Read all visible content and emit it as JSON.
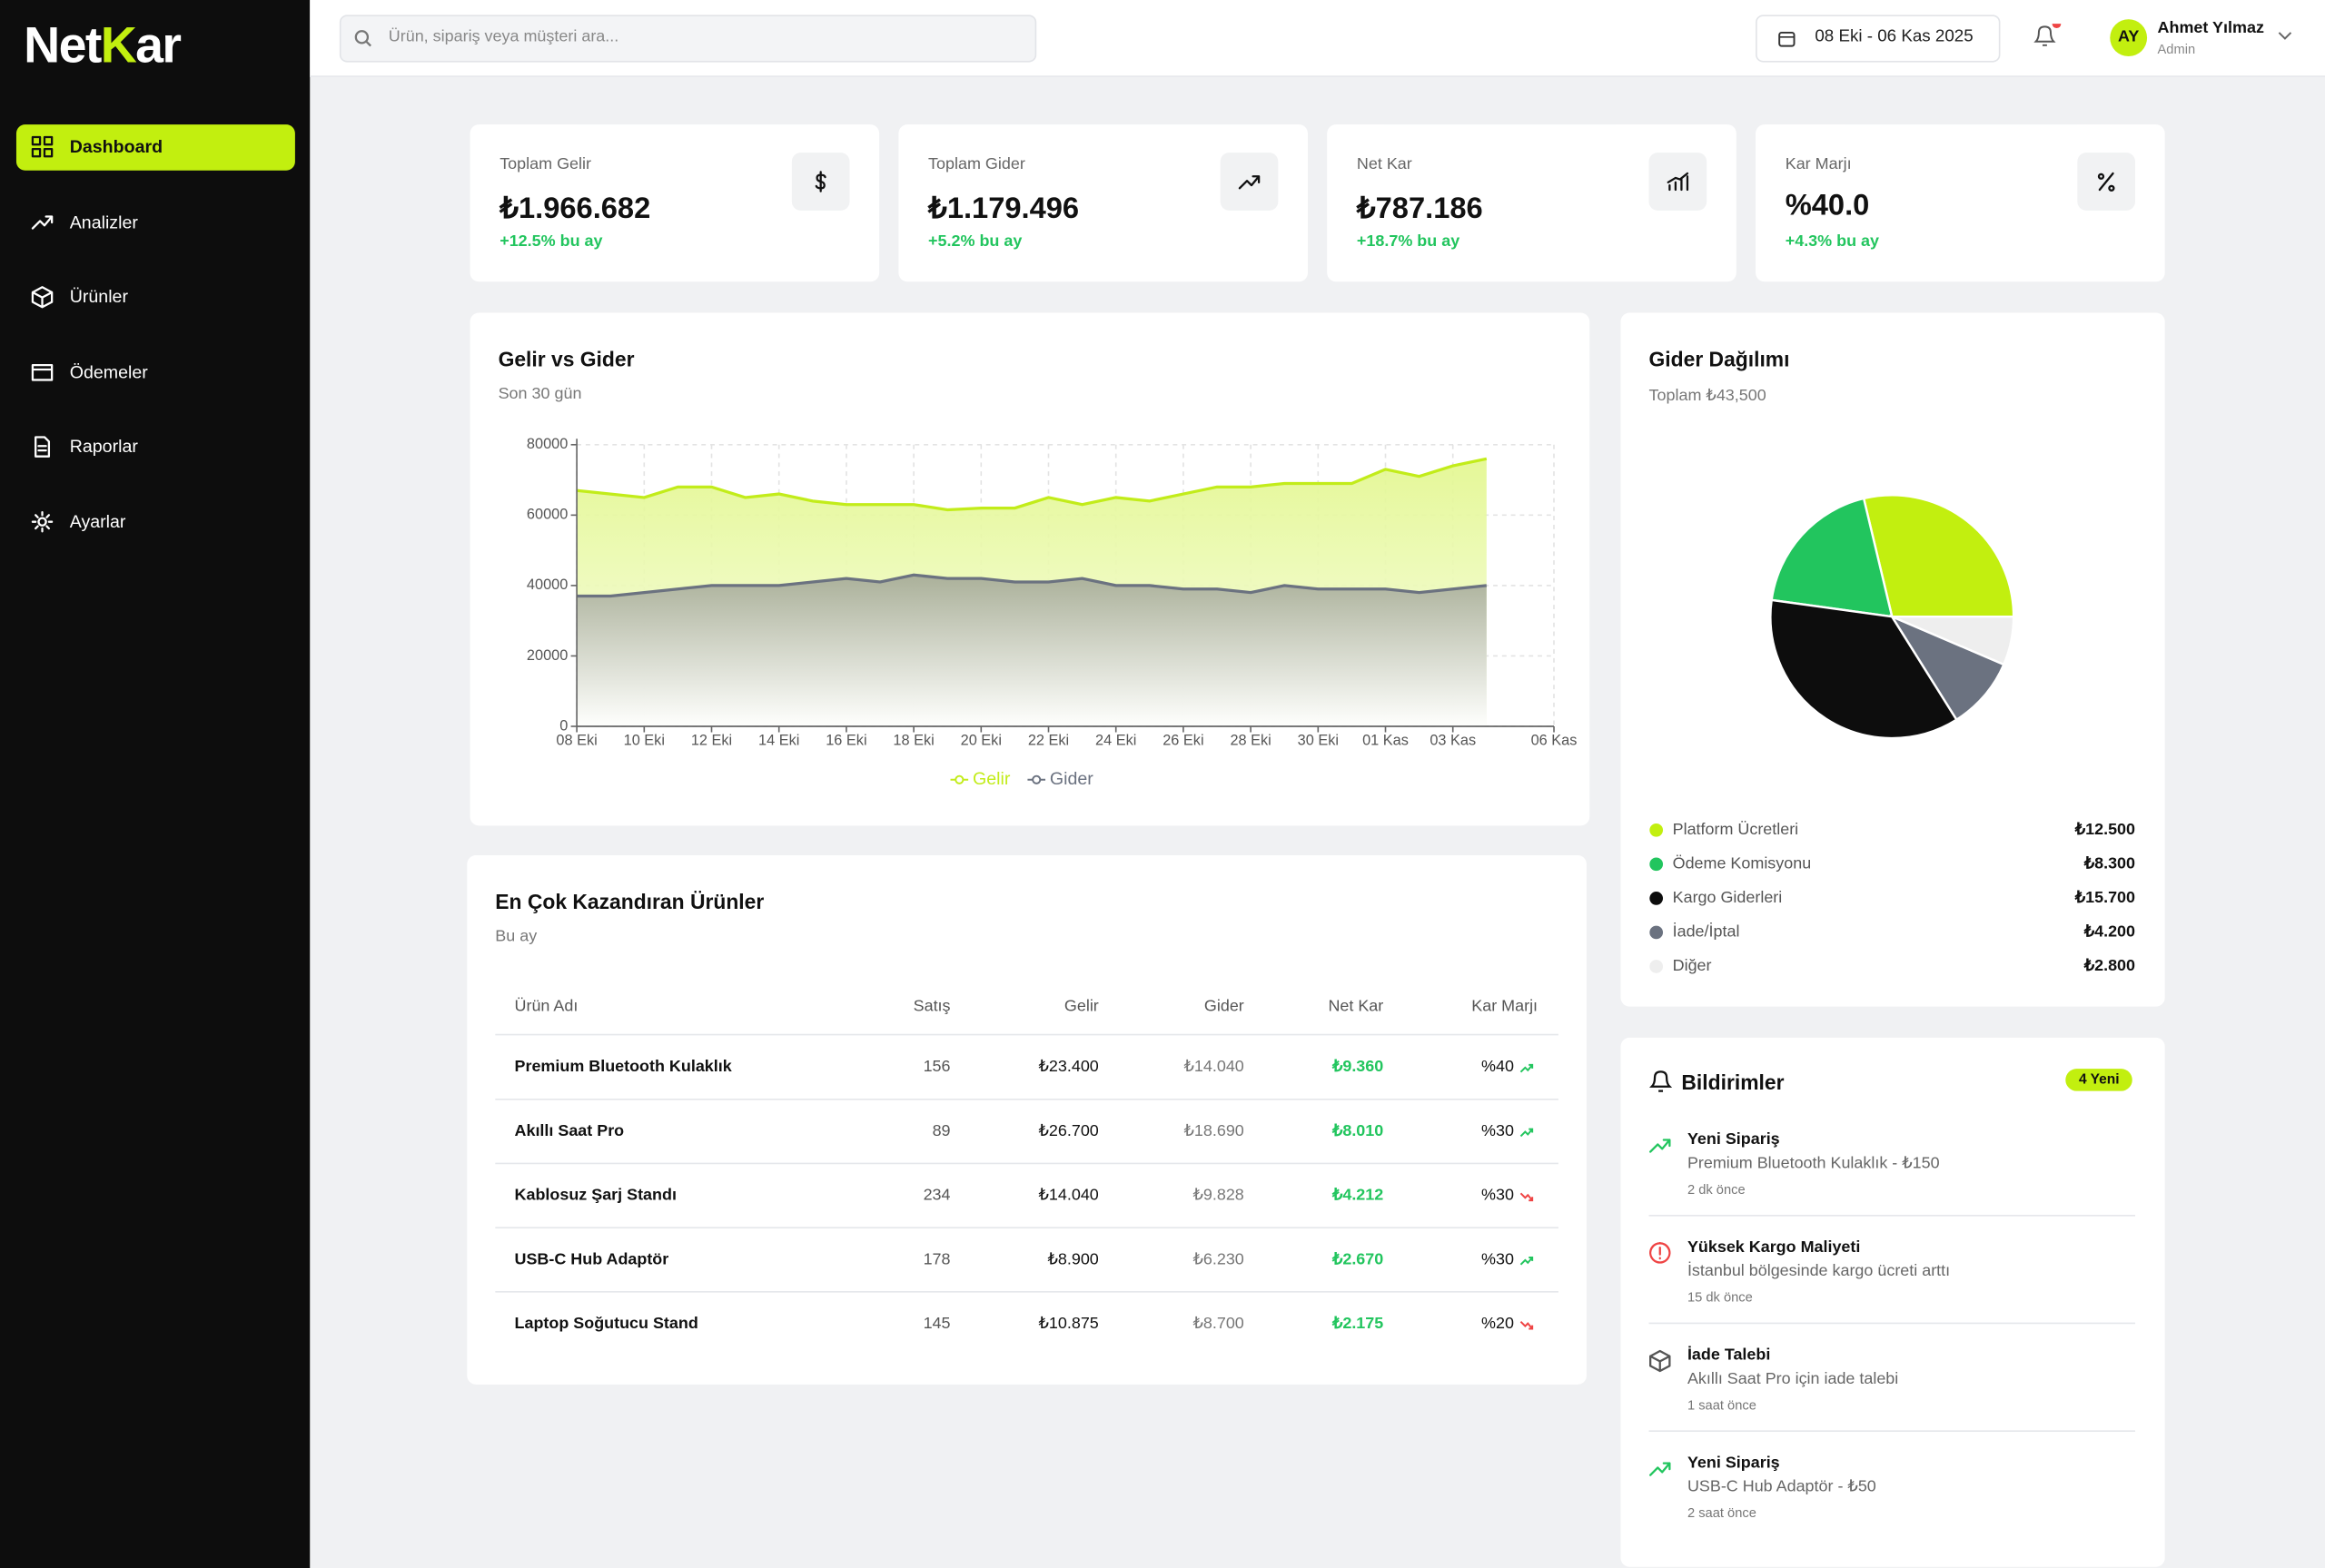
{
  "brand": [
    "Net",
    "K",
    "ar"
  ],
  "nav": {
    "active": 0,
    "items": [
      "Dashboard",
      "Analizler",
      "Ürünler",
      "Ödemeler",
      "Raporlar",
      "Ayarlar"
    ]
  },
  "header": {
    "search_placeholder": "Ürün, sipariş veya müşteri ara...",
    "date_range": "08 Eki - 06 Kas 2025",
    "notification_dot": true,
    "user": {
      "initials": "AY",
      "name": "Ahmet Yılmaz",
      "role": "Admin"
    }
  },
  "kpis": [
    {
      "label": "Toplam Gelir",
      "value": "₺1.966.682",
      "change": "+12.5% bu ay",
      "icon": "dollar"
    },
    {
      "label": "Toplam Gider",
      "value": "₺1.179.496",
      "change": "+5.2% bu ay",
      "icon": "trend"
    },
    {
      "label": "Net Kar",
      "value": "₺787.186",
      "change": "+18.7% bu ay",
      "icon": "bars"
    },
    {
      "label": "Kar Marjı",
      "value": "%40.0",
      "change": "+4.3% bu ay",
      "icon": "percent"
    }
  ],
  "chart_data": [
    {
      "type": "line",
      "title": "Gelir vs Gider",
      "subtitle": "Son 30 gün",
      "categories": [
        "08 Eki",
        null,
        "10 Eki",
        null,
        "12 Eki",
        null,
        "14 Eki",
        null,
        "16 Eki",
        null,
        "18 Eki",
        null,
        "20 Eki",
        null,
        "22 Eki",
        null,
        "24 Eki",
        null,
        "26 Eki",
        null,
        "28 Eki",
        null,
        "30 Eki",
        null,
        "01 Kas",
        null,
        "03 Kas",
        null,
        null,
        "06 Kas"
      ],
      "series": [
        {
          "name": "Gelir",
          "color": "#c2ec1a",
          "values": [
            67000,
            66000,
            65000,
            68000,
            68000,
            65000,
            66000,
            64000,
            63000,
            63000,
            63000,
            61500,
            62000,
            62000,
            65000,
            63000,
            65000,
            64000,
            66000,
            68000,
            68000,
            69000,
            69000,
            69000,
            73000,
            71000,
            74000,
            76000,
            null,
            null
          ]
        },
        {
          "name": "Gider",
          "color": "#6b7280",
          "values": [
            37000,
            37000,
            38000,
            39000,
            40000,
            40000,
            40000,
            41000,
            42000,
            41000,
            43000,
            42000,
            42000,
            41000,
            41000,
            42000,
            40000,
            40000,
            39000,
            39000,
            38000,
            40000,
            39000,
            39000,
            39000,
            38000,
            39000,
            40000,
            null,
            null
          ]
        }
      ],
      "ylim": [
        0,
        80000
      ],
      "yticks": [
        0,
        20000,
        40000,
        60000,
        80000
      ],
      "grid": true,
      "legend": "bottom"
    },
    {
      "type": "pie",
      "title": "Gider Dağılımı",
      "subtitle": "Toplam ₺43,500",
      "categories": [
        "Platform Ücretleri",
        "Ödeme Komisyonu",
        "Kargo Giderleri",
        "İade/İptal",
        "Diğer"
      ],
      "values": [
        12500,
        8300,
        15700,
        4200,
        2800
      ],
      "value_labels": [
        "₺12.500",
        "₺8.300",
        "₺15.700",
        "₺4.200",
        "₺2.800"
      ],
      "colors": [
        "#c2ef0f",
        "#22c55e",
        "#0d0d0d",
        "#6b7280",
        "#eeeeee"
      ],
      "start_angle": 0,
      "counterclock": true
    }
  ],
  "table": {
    "title": "En Çok Kazandıran Ürünler",
    "subtitle": "Bu ay",
    "columns": [
      "Ürün Adı",
      "Satış",
      "Gelir",
      "Gider",
      "Net Kar",
      "Kar Marjı"
    ],
    "rows": [
      [
        "Premium Bluetooth Kulaklık",
        "156",
        "₺23.400",
        "₺14.040",
        "₺9.360",
        "%40"
      ],
      [
        "Akıllı Saat Pro",
        "89",
        "₺26.700",
        "₺18.690",
        "₺8.010",
        "%30"
      ],
      [
        "Kablosuz Şarj Standı",
        "234",
        "₺14.040",
        "₺9.828",
        "₺4.212",
        "%30"
      ],
      [
        "USB-C Hub Adaptör",
        "178",
        "₺8.900",
        "₺6.230",
        "₺2.670",
        "%30"
      ],
      [
        "Laptop Soğutucu Stand",
        "145",
        "₺10.875",
        "₺8.700",
        "₺2.175",
        "%20"
      ]
    ],
    "trends": [
      "up",
      "up",
      "down",
      "up",
      "down"
    ]
  },
  "notifications": {
    "title": "Bildirimler",
    "badge": "4 Yeni",
    "items": [
      {
        "icon": "trend",
        "title": "Yeni Sipariş",
        "text": "Premium Bluetooth Kulaklık - ₺150",
        "time": "2 dk önce"
      },
      {
        "icon": "alert",
        "title": "Yüksek Kargo Maliyeti",
        "text": "İstanbul bölgesinde kargo ücreti arttı",
        "time": "15 dk önce"
      },
      {
        "icon": "package",
        "title": "İade Talebi",
        "text": "Akıllı Saat Pro için iade talebi",
        "time": "1 saat önce"
      },
      {
        "icon": "trend",
        "title": "Yeni Sipariş",
        "text": "USB-C Hub Adaptör - ₺50",
        "time": "2 saat önce"
      }
    ]
  }
}
